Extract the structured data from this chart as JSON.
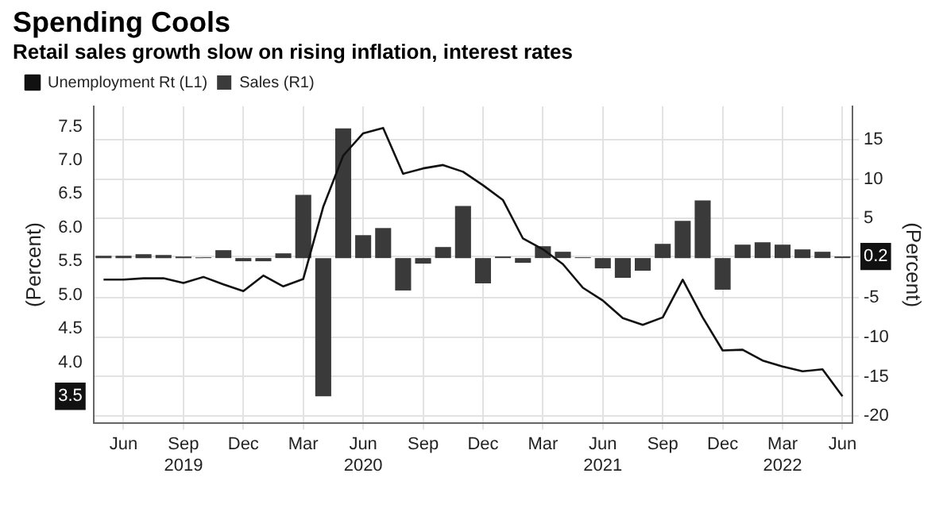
{
  "chart_data": {
    "type": "bar",
    "title": "Spending Cools",
    "subtitle": "Retail sales growth slow on rising inflation, interest rates",
    "ylabel": "(Percent)",
    "y2label": "(Percent)",
    "categories": [
      null,
      "Jun",
      null,
      null,
      "Sep\n2019",
      null,
      null,
      "Dec",
      null,
      null,
      "Mar",
      null,
      null,
      "Jun\n2020",
      null,
      null,
      "Sep",
      null,
      null,
      "Dec",
      null,
      null,
      "Mar",
      null,
      null,
      "Jun\n2021",
      null,
      null,
      "Sep",
      null,
      null,
      "Dec",
      null,
      null,
      "Mar\n2022",
      null,
      null,
      "Jun"
    ],
    "series": [
      {
        "name": "Sales (R1)",
        "axis": "y2",
        "color": "#3a3a3a",
        "values": [
          0.3,
          0.3,
          0.5,
          0.4,
          0.2,
          0.1,
          1.0,
          -0.4,
          -0.4,
          0.6,
          8.0,
          -17.5,
          16.4,
          2.9,
          3.8,
          -4.1,
          -0.7,
          1.4,
          6.6,
          -3.2,
          0.2,
          -0.6,
          1.5,
          0.8,
          0.1,
          -1.3,
          -2.5,
          -1.6,
          1.8,
          4.7,
          7.3,
          -4.0,
          1.7,
          2.0,
          1.7,
          1.1,
          0.8,
          0.2
        ]
      },
      {
        "name": "Unemployment Rt (L1)",
        "type": "line",
        "axis": "y",
        "color": "#111111",
        "values": [
          5.23,
          5.23,
          5.25,
          5.25,
          5.18,
          5.27,
          5.16,
          5.06,
          5.29,
          5.13,
          5.24,
          6.31,
          7.07,
          7.4,
          7.48,
          6.8,
          6.88,
          6.93,
          6.83,
          6.63,
          6.41,
          5.84,
          5.68,
          5.46,
          5.11,
          4.92,
          4.66,
          4.56,
          4.67,
          5.23,
          4.67,
          4.18,
          4.19,
          4.03,
          3.94,
          3.87,
          3.9,
          3.5
        ]
      }
    ],
    "ylim": [
      3.1,
      7.8
    ],
    "yticks": [
      3.5,
      {
        "value": 4,
        "label": "4.0"
      },
      {
        "value": 4.5,
        "label": "4.5"
      },
      {
        "value": 5,
        "label": "5.0"
      },
      {
        "value": 5.5,
        "label": "5.5"
      },
      {
        "value": 6,
        "label": "6.0"
      },
      {
        "value": 6.5,
        "label": "6.5"
      },
      {
        "value": 7,
        "label": "7.0"
      },
      {
        "value": 7.5,
        "label": "7.5"
      }
    ],
    "y2lim": [
      -20.9,
      19.2
    ],
    "y2ticks": [
      -20,
      -15,
      -10,
      -5,
      0.2,
      5,
      10,
      15
    ],
    "grid": true,
    "legend": "top left",
    "marker": "none",
    "line_style": "solid"
  }
}
